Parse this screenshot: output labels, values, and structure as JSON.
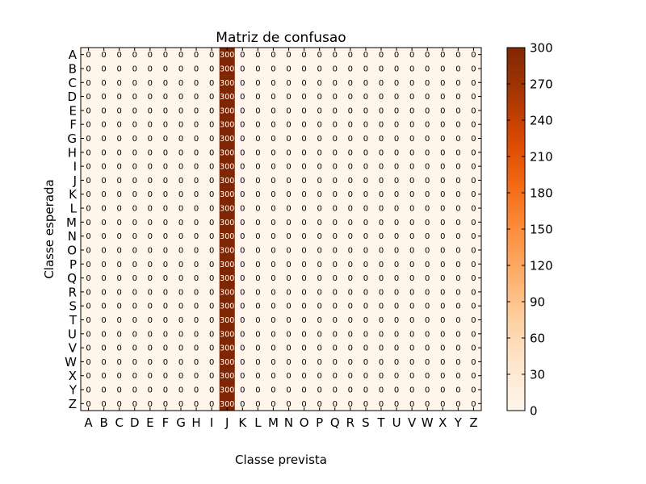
{
  "chart_data": {
    "type": "heatmap",
    "title": "Matriz de confusao",
    "xlabel": "Classe prevista",
    "ylabel": "Classe esperada",
    "x_categories": [
      "A",
      "B",
      "C",
      "D",
      "E",
      "F",
      "G",
      "H",
      "I",
      "J",
      "K",
      "L",
      "M",
      "N",
      "O",
      "P",
      "Q",
      "R",
      "S",
      "T",
      "U",
      "V",
      "W",
      "X",
      "Y",
      "Z"
    ],
    "y_categories": [
      "A",
      "B",
      "C",
      "D",
      "E",
      "F",
      "G",
      "H",
      "I",
      "J",
      "K",
      "L",
      "M",
      "N",
      "O",
      "P",
      "Q",
      "R",
      "S",
      "T",
      "U",
      "V",
      "W",
      "X",
      "Y",
      "Z"
    ],
    "predicted_column_for_all_rows": "J",
    "count_in_predicted_column": 300,
    "count_elsewhere": 0,
    "colorbar": {
      "min": 0,
      "max": 300,
      "ticks": [
        0,
        30,
        60,
        90,
        120,
        150,
        180,
        210,
        240,
        270,
        300
      ],
      "colormap": "Oranges",
      "low_color": "#fff5eb",
      "high_color": "#7f2704"
    },
    "grid": false
  }
}
